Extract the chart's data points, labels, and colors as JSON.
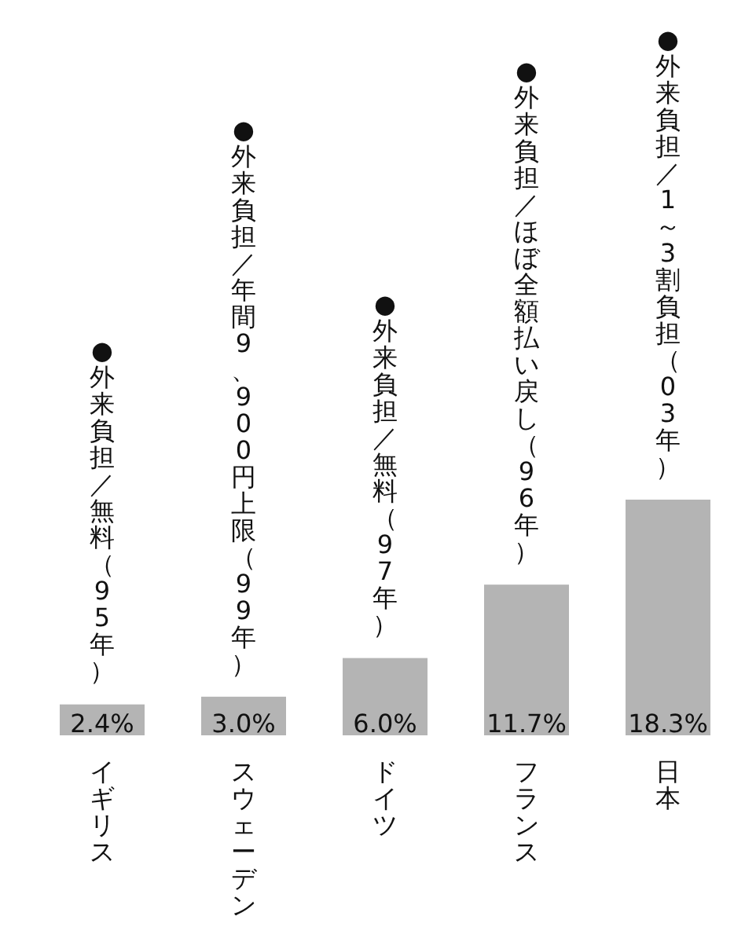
{
  "chart_data": {
    "type": "bar",
    "categories": [
      "イギリス",
      "スウェーデン",
      "ドイツ",
      "フランス",
      "日本"
    ],
    "values": [
      2.4,
      3.0,
      6.0,
      11.7,
      18.3
    ],
    "value_labels": [
      "2.4%",
      "3.0%",
      "6.0%",
      "11.7%",
      "18.3%"
    ],
    "color": "#b4b4b4",
    "annotations": [
      "●外来負担／無料（95年）",
      "●外来負担／年間9、900円上限（99年）",
      "●外来負担／無料（97年）",
      "●外来負担／ほぼ全額払い戻し（96年）",
      "●外来負担／1～3割負担（03年）"
    ]
  }
}
